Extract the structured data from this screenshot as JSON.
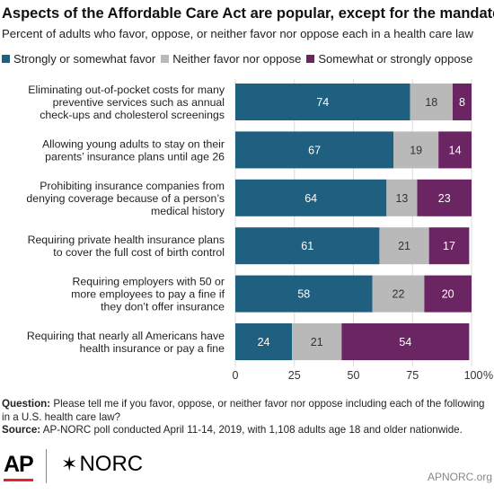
{
  "header": {
    "title": "Aspects of the Affordable Care Act are popular, except for the mandate",
    "subtitle": "Percent of adults who favor, oppose, or neither favor nor oppose each in a health care law"
  },
  "colors": {
    "favor": "#1f5f7f",
    "neither": "#b9b9b9",
    "oppose": "#6b2563"
  },
  "legend": [
    {
      "label": "Strongly or somewhat favor",
      "color": "#1f5f7f"
    },
    {
      "label": "Neither favor nor oppose",
      "color": "#b9b9b9"
    },
    {
      "label": "Somewhat or strongly oppose",
      "color": "#6b2563"
    }
  ],
  "chart_data": {
    "type": "bar",
    "orientation": "horizontal",
    "stacked": true,
    "categories": [
      [
        "Eliminating out-of-pocket costs for many",
        "preventive services such as annual",
        "check-ups and cholesterol screenings"
      ],
      [
        "Allowing young adults to stay on their",
        "parents’ insurance plans until age 26"
      ],
      [
        "Prohibiting insurance companies from",
        "denying coverage because of a person’s",
        "medical history"
      ],
      [
        "Requiring private health insurance plans",
        "to cover the full cost of birth control"
      ],
      [
        "Requiring employers with 50 or",
        "more employees to pay a fine if",
        "they don’t offer insurance"
      ],
      [
        "Requiring that nearly all Americans have",
        "health insurance or pay a fine"
      ]
    ],
    "series": [
      {
        "name": "Strongly or somewhat favor",
        "values": [
          74,
          67,
          64,
          61,
          58,
          24
        ]
      },
      {
        "name": "Neither favor nor oppose",
        "values": [
          18,
          19,
          13,
          21,
          22,
          21
        ]
      },
      {
        "name": "Somewhat or strongly oppose",
        "values": [
          8,
          14,
          23,
          17,
          20,
          54
        ]
      }
    ],
    "xlim": [
      0,
      100
    ],
    "xticks": [
      "0",
      "25",
      "50",
      "75",
      "100"
    ],
    "xtick_suffix": "%",
    "grid": true
  },
  "notes": {
    "question_label": "Question:",
    "question_text": "Please tell me if you favor, oppose, or neither favor nor oppose including each of the following in a U.S. health care law?",
    "source_label": "Source:",
    "source_text": "AP-NORC poll conducted April 11-14, 2019, with 1,108 adults age 18 and older nationwide."
  },
  "footer": {
    "logo_ap": "AP",
    "logo_norc": "NORC",
    "logo_norc_mark": "✶",
    "url": "APNORC.org"
  }
}
